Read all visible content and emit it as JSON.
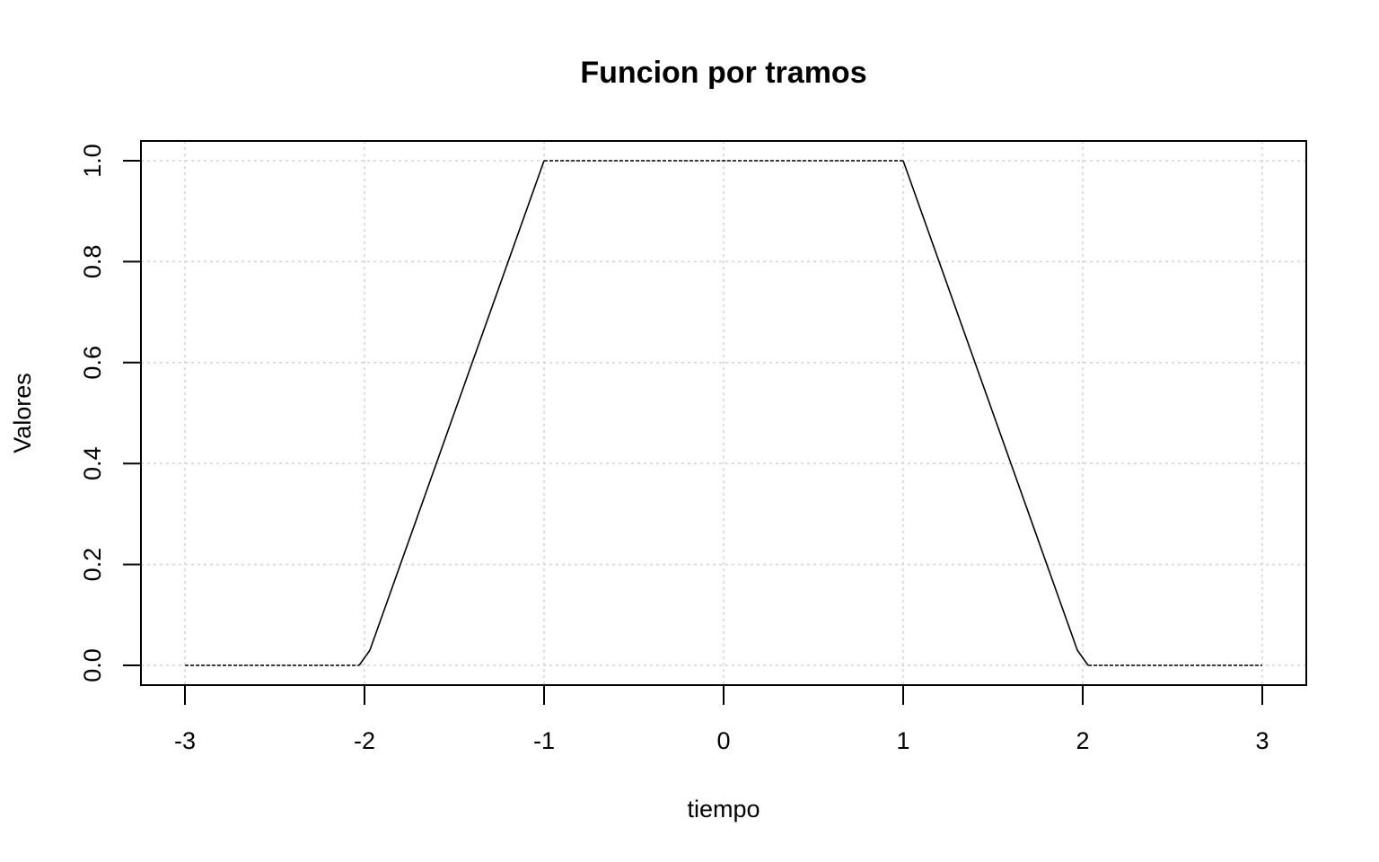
{
  "chart_data": {
    "type": "line",
    "title": "Funcion por tramos",
    "xlabel": "tiempo",
    "ylabel": "Valores",
    "xlim": [
      -3,
      3
    ],
    "ylim": [
      0,
      1
    ],
    "grid": true,
    "legend": "none",
    "x_ticks": [
      -3,
      -2,
      -1,
      0,
      1,
      2,
      3
    ],
    "x_tick_labels": [
      "-3",
      "-2",
      "-1",
      "0",
      "1",
      "2",
      "3"
    ],
    "y_ticks": [
      0.0,
      0.2,
      0.4,
      0.6,
      0.8,
      1.0
    ],
    "y_tick_labels": [
      "0.0",
      "0.2",
      "0.4",
      "0.6",
      "0.8",
      "1.0"
    ],
    "series": [
      {
        "segments": [
          {
            "style": "dashed",
            "x": [
              -3,
              -2.03
            ],
            "y": [
              0,
              0
            ]
          },
          {
            "style": "solid",
            "x": [
              -2.03,
              -1.97,
              -1.0
            ],
            "y": [
              0,
              0.03,
              1.0
            ]
          },
          {
            "style": "dashed",
            "x": [
              -1.0,
              1.0
            ],
            "y": [
              1.0,
              1.0
            ]
          },
          {
            "style": "solid",
            "x": [
              1.0,
              1.97,
              2.03
            ],
            "y": [
              1.0,
              0.03,
              0
            ]
          },
          {
            "style": "dashed",
            "x": [
              2.03,
              3.0
            ],
            "y": [
              0,
              0
            ]
          }
        ]
      }
    ],
    "colors": {
      "line": "#000000",
      "grid": "#d3d3d3",
      "frame": "#000000"
    }
  }
}
